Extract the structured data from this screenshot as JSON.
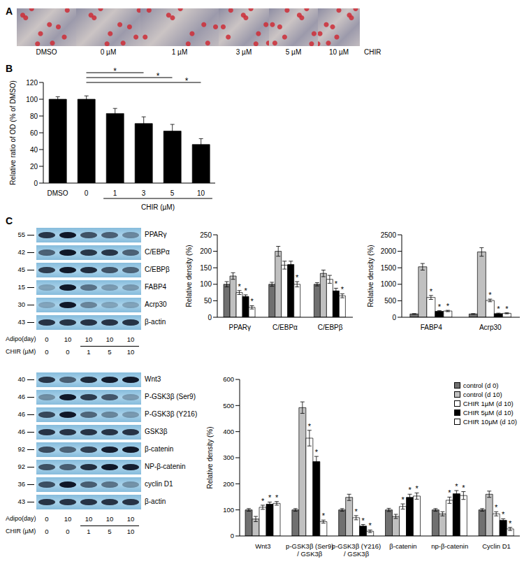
{
  "panel_A": {
    "label": "A",
    "images": [
      "DMSO",
      "0 µM",
      "1 µM",
      "3 µM",
      "5 µM",
      "10 µM"
    ],
    "group_label": "CHIR"
  },
  "panel_B": {
    "label": "B"
  },
  "panel_C": {
    "label": "C",
    "blots": [
      {
        "rows": [
          {
            "name": "PPARγ",
            "mw": 55
          },
          {
            "name": "C/EBPα",
            "mw": 42
          },
          {
            "name": "C/EBPβ",
            "mw": 45
          },
          {
            "name": "FABP4",
            "mw": 15
          },
          {
            "name": "Acrp30",
            "mw": 30
          },
          {
            "name": "β-actin",
            "mw": 43
          }
        ],
        "lanes": [
          {
            "label": "Adipo(day)",
            "values": [
              0,
              10,
              10,
              10,
              10
            ]
          },
          {
            "label": "CHIR (µM)",
            "values": [
              0,
              0,
              1,
              5,
              10
            ]
          }
        ]
      },
      {
        "rows": [
          {
            "name": "Wnt3",
            "mw": 40
          },
          {
            "name": "P-GSK3β (Ser9)",
            "mw": 46
          },
          {
            "name": "P-GSK3β (Y216)",
            "mw": 46
          },
          {
            "name": "GSK3β",
            "mw": 46
          },
          {
            "name": "β-catenin",
            "mw": 92
          },
          {
            "name": "NP-β-catenin",
            "mw": 92
          },
          {
            "name": "cyclin D1",
            "mw": 36
          },
          {
            "name": "β-actin",
            "mw": 43
          }
        ],
        "lanes": [
          {
            "label": "Adipo(day)",
            "values": [
              0,
              10,
              10,
              10,
              10
            ]
          },
          {
            "label": "CHIR (µM)",
            "values": [
              0,
              0,
              1,
              5,
              10
            ]
          }
        ]
      }
    ]
  },
  "chart_data": [
    {
      "type": "bar",
      "ylabel": "Relative ratio of OD (% of DMSO)",
      "categories": [
        "DMSO",
        "0",
        "1",
        "3",
        "5",
        "10"
      ],
      "x_group": {
        "label": "CHIR (µM)",
        "from": "1",
        "to": "10"
      },
      "series": [
        {
          "color": "#000000",
          "values": [
            100,
            100,
            83,
            71,
            62,
            46
          ],
          "errors": [
            3,
            4,
            6,
            8,
            8,
            7
          ]
        }
      ],
      "brackets": [
        {
          "from": "0",
          "to": "3",
          "label": "*"
        },
        {
          "from": "0",
          "to": "5",
          "label": "*"
        },
        {
          "from": "0",
          "to": "10",
          "label": "*"
        }
      ],
      "ylim": [
        0,
        120
      ],
      "yticks": [
        0,
        20,
        40,
        60,
        80,
        100,
        120
      ],
      "grid": false
    },
    {
      "type": "bar",
      "ylabel": "Relative density (%)",
      "categories": [
        "PPARγ",
        "C/EBPα",
        "C/EBPβ"
      ],
      "significance_label": "*",
      "series": [
        {
          "color": "#707070",
          "values": [
            100,
            100,
            100
          ],
          "errors": [
            8,
            6,
            5
          ],
          "significant": [
            false,
            false,
            false
          ]
        },
        {
          "color": "#c0c0c0",
          "values": [
            125,
            200,
            133
          ],
          "errors": [
            10,
            15,
            10
          ],
          "significant": [
            false,
            false,
            false
          ]
        },
        {
          "color": "#ffffff",
          "values": [
            75,
            158,
            115
          ],
          "errors": [
            6,
            12,
            12
          ],
          "significant": [
            true,
            false,
            false
          ]
        },
        {
          "color": "#000000",
          "values": [
            63,
            160,
            80
          ],
          "errors": [
            5,
            10,
            8
          ],
          "significant": [
            true,
            false,
            true
          ]
        },
        {
          "color": "#ffffff",
          "values": [
            30,
            100,
            65
          ],
          "errors": [
            5,
            8,
            6
          ],
          "significant": [
            true,
            true,
            true
          ]
        }
      ],
      "ylim": [
        0,
        250
      ],
      "yticks": [
        0,
        50,
        100,
        150,
        200,
        250
      ],
      "grid": false
    },
    {
      "type": "bar",
      "ylabel": "Relative density (%)",
      "categories": [
        "FABP4",
        "Acrp30"
      ],
      "significance_label": "*",
      "series": [
        {
          "color": "#707070",
          "values": [
            100,
            100
          ],
          "errors": [
            10,
            10
          ],
          "significant": [
            false,
            false
          ]
        },
        {
          "color": "#c0c0c0",
          "values": [
            1530,
            1980
          ],
          "errors": [
            100,
            130
          ],
          "significant": [
            false,
            false
          ]
        },
        {
          "color": "#ffffff",
          "values": [
            600,
            510
          ],
          "errors": [
            60,
            40
          ],
          "significant": [
            true,
            true
          ]
        },
        {
          "color": "#000000",
          "values": [
            180,
            110
          ],
          "errors": [
            20,
            15
          ],
          "significant": [
            true,
            true
          ]
        },
        {
          "color": "#ffffff",
          "values": [
            190,
            120
          ],
          "errors": [
            20,
            15
          ],
          "significant": [
            true,
            true
          ]
        }
      ],
      "ylim": [
        0,
        2500
      ],
      "yticks": [
        0,
        500,
        1000,
        1500,
        2000,
        2500
      ],
      "grid": false
    },
    {
      "type": "bar",
      "ylabel": "Relative density (%)",
      "categories": [
        "Wnt3",
        "p-GSK3β (Ser9) / GSK3β",
        "p-GSK3β (Y216) / GSK3β",
        "β-catenin",
        "np-β-catenin",
        "Cyclin D1"
      ],
      "significance_label": "*",
      "legend": "top-right",
      "series": [
        {
          "name": "control (d 0)",
          "color": "#707070",
          "values": [
            100,
            100,
            100,
            100,
            100,
            100
          ],
          "errors": [
            5,
            5,
            5,
            6,
            5,
            5
          ],
          "significant": [
            false,
            false,
            false,
            false,
            false,
            false
          ]
        },
        {
          "name": "control (d 10)",
          "color": "#c0c0c0",
          "values": [
            65,
            492,
            148,
            75,
            85,
            160
          ],
          "errors": [
            10,
            22,
            12,
            8,
            8,
            12
          ],
          "significant": [
            false,
            false,
            false,
            false,
            false,
            false
          ]
        },
        {
          "name": "CHIR 1µM (d 10)",
          "color": "#ffffff",
          "values": [
            110,
            375,
            70,
            113,
            137,
            85
          ],
          "errors": [
            8,
            30,
            8,
            10,
            12,
            8
          ],
          "significant": [
            true,
            true,
            true,
            true,
            true,
            true
          ]
        },
        {
          "name": "CHIR 5µM (d 10)",
          "color": "#000000",
          "values": [
            122,
            285,
            38,
            148,
            162,
            60
          ],
          "errors": [
            8,
            20,
            6,
            12,
            12,
            6
          ],
          "significant": [
            true,
            true,
            true,
            true,
            true,
            true
          ]
        },
        {
          "name": "CHIR 10µM (d 10)",
          "color": "#ffffff",
          "values": [
            125,
            55,
            18,
            153,
            155,
            27
          ],
          "errors": [
            7,
            6,
            5,
            12,
            15,
            6
          ],
          "significant": [
            true,
            true,
            true,
            true,
            true,
            true
          ]
        }
      ],
      "ylim": [
        0,
        600
      ],
      "yticks": [
        0,
        100,
        200,
        300,
        400,
        500,
        600
      ],
      "grid": false
    }
  ]
}
